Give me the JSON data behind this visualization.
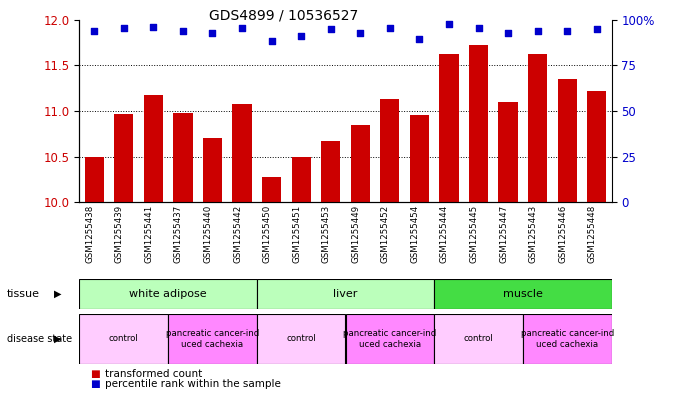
{
  "title": "GDS4899 / 10536527",
  "samples": [
    "GSM1255438",
    "GSM1255439",
    "GSM1255441",
    "GSM1255437",
    "GSM1255440",
    "GSM1255442",
    "GSM1255450",
    "GSM1255451",
    "GSM1255453",
    "GSM1255449",
    "GSM1255452",
    "GSM1255454",
    "GSM1255444",
    "GSM1255445",
    "GSM1255447",
    "GSM1255443",
    "GSM1255446",
    "GSM1255448"
  ],
  "bar_values": [
    10.5,
    10.97,
    11.17,
    10.98,
    10.7,
    11.08,
    10.28,
    10.5,
    10.67,
    10.85,
    11.13,
    10.96,
    11.62,
    11.72,
    11.1,
    11.62,
    11.35,
    11.22
  ],
  "blue_values": [
    11.88,
    11.91,
    11.92,
    11.88,
    11.85,
    11.91,
    11.77,
    11.82,
    11.9,
    11.85,
    11.91,
    11.79,
    11.95,
    11.91,
    11.85,
    11.88,
    11.88,
    11.9
  ],
  "ylim": [
    10.0,
    12.0
  ],
  "yticks_left": [
    10.0,
    10.5,
    11.0,
    11.5,
    12.0
  ],
  "yticks_right_labels": [
    "0",
    "25",
    "50",
    "75",
    "100%"
  ],
  "bar_color": "#cc0000",
  "dot_color": "#0000cc",
  "tissue_groups": [
    {
      "label": "white adipose",
      "start": 0,
      "end": 6,
      "color": "#bbffbb"
    },
    {
      "label": "liver",
      "start": 6,
      "end": 12,
      "color": "#bbffbb"
    },
    {
      "label": "muscle",
      "start": 12,
      "end": 18,
      "color": "#44dd44"
    }
  ],
  "disease_groups": [
    {
      "label": "control",
      "start": 0,
      "end": 3,
      "color": "#ffccff"
    },
    {
      "label": "pancreatic cancer-ind\nuced cachexia",
      "start": 3,
      "end": 6,
      "color": "#ff88ff"
    },
    {
      "label": "control",
      "start": 6,
      "end": 9,
      "color": "#ffccff"
    },
    {
      "label": "pancreatic cancer-ind\nuced cachexia",
      "start": 9,
      "end": 12,
      "color": "#ff88ff"
    },
    {
      "label": "control",
      "start": 12,
      "end": 15,
      "color": "#ffccff"
    },
    {
      "label": "pancreatic cancer-ind\nuced cachexia",
      "start": 15,
      "end": 18,
      "color": "#ff88ff"
    }
  ],
  "bg_color": "#ffffff",
  "label_bg": "#dddddd"
}
